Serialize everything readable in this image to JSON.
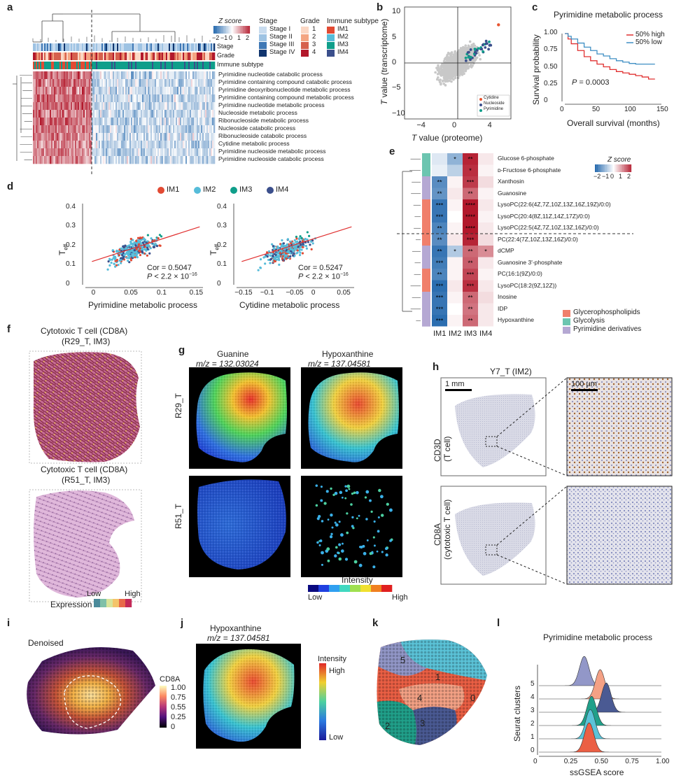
{
  "panels": {
    "a": {
      "label": "a"
    },
    "b": {
      "label": "b"
    },
    "c": {
      "label": "c"
    },
    "d": {
      "label": "d"
    },
    "e": {
      "label": "e"
    },
    "f": {
      "label": "f"
    },
    "g": {
      "label": "g"
    },
    "h": {
      "label": "h"
    },
    "i": {
      "label": "i"
    },
    "j": {
      "label": "j"
    },
    "k": {
      "label": "k"
    },
    "l": {
      "label": "l"
    }
  },
  "heatmap_a": {
    "zscore_title": "Z score",
    "zscore_ticks": [
      "−2",
      "−1",
      "0",
      "1",
      "2"
    ],
    "stage_title": "Stage",
    "stage_items": [
      "Stage I",
      "Stage II",
      "Stage III",
      "Stage IV"
    ],
    "grade_title": "Grade",
    "grade_items": [
      "1",
      "2",
      "3",
      "4"
    ],
    "immune_title": "Immune subtype",
    "immune_items": [
      "IM1",
      "IM2",
      "IM3",
      "IM4"
    ],
    "annot_rows": [
      "Stage",
      "Grade",
      "Immune subtype"
    ],
    "row_labels": [
      "Pyrimidine nucleotide catabolic process",
      "Pyrimidine containing compound catabolic process",
      "Pyrimidine deoxyribonucleotide metabolic process",
      "Pyrimidine containing compound metabolic process",
      "Pyrimidine nucleotide metabolic process",
      "Nucleoside metabolic process",
      "Ribonucleoside metabolic process",
      "Nucleoside catabolic process",
      "Ribonucleoside catabolic process",
      "Cytidine metabolic process",
      "Pyrimidine nucleoside metabolic process",
      "Pyrimidine nucleoside catabolic process"
    ],
    "colors": {
      "stage": [
        "#c9dcef",
        "#9ec3e3",
        "#3f78b5",
        "#10356e"
      ],
      "grade": [
        "#fbd7c4",
        "#f4a582",
        "#d6604d",
        "#b2182b"
      ],
      "immune": [
        "#e24a33",
        "#56bcd9",
        "#0f9e8a",
        "#3b4f8c"
      ]
    }
  },
  "chart_data": [
    {
      "id": "b",
      "type": "scatter",
      "xlabel": "T value (proteome)",
      "ylabel": "T value (transcriptome)",
      "xticks": [
        "−4",
        "0",
        "4"
      ],
      "yticks": [
        "10",
        "5",
        "0",
        "−5",
        "−10"
      ],
      "xlim": [
        -6,
        6
      ],
      "ylim": [
        -11,
        11
      ],
      "legend": [
        "Cytidine",
        "Nucleoside",
        "Pyrimidine"
      ],
      "legend_colors": [
        "#e8542f",
        "#3b4f8c",
        "#0f9e8a"
      ]
    },
    {
      "id": "c",
      "type": "line",
      "title": "Pyrimidine metabolic process",
      "xlabel": "Overall survival (months)",
      "ylabel": "Survival probability",
      "xticks": [
        "0",
        "50",
        "100",
        "150"
      ],
      "yticks": [
        "1.00",
        "0.75",
        "0.50",
        "0.25",
        "0"
      ],
      "xlim": [
        0,
        150
      ],
      "ylim": [
        0,
        1
      ],
      "series": [
        {
          "name": "50% high",
          "color": "#e03030",
          "x": [
            0,
            5,
            10,
            20,
            30,
            40,
            50,
            60,
            70,
            80,
            90,
            100,
            110,
            120,
            130,
            140
          ],
          "y": [
            1.0,
            0.92,
            0.85,
            0.75,
            0.66,
            0.6,
            0.55,
            0.51,
            0.47,
            0.44,
            0.42,
            0.4,
            0.38,
            0.36,
            0.33,
            0.33
          ]
        },
        {
          "name": "50% low",
          "color": "#3f8fc4",
          "x": [
            0,
            5,
            10,
            20,
            30,
            40,
            50,
            60,
            70,
            80,
            90,
            100,
            110,
            120,
            130,
            140
          ],
          "y": [
            1.0,
            0.96,
            0.92,
            0.86,
            0.8,
            0.75,
            0.7,
            0.67,
            0.63,
            0.6,
            0.58,
            0.56,
            0.55,
            0.55,
            0.55,
            0.55
          ]
        }
      ],
      "annotation": "P = 0.0003"
    },
    {
      "id": "d1",
      "type": "scatter",
      "xlabel": "Pyrimidine metabolic process",
      "ylabel": "T",
      "ylabel_sub": "eff",
      "xticks": [
        "0",
        "0.05",
        "0.1",
        "0.15"
      ],
      "yticks": [
        "0.4",
        "0.3",
        "0.2",
        "0.1",
        "0"
      ],
      "xlim": [
        -0.02,
        0.16
      ],
      "ylim": [
        0,
        0.42
      ],
      "stat_cor": "Cor = 0.5047",
      "stat_p": "P < 2.2 × 10",
      "stat_exp": "−16"
    },
    {
      "id": "d2",
      "type": "scatter",
      "xlabel": "Cytidine metabolic process",
      "ylabel": "T",
      "ylabel_sub": "eff",
      "xticks": [
        "−0.15",
        "−0.1",
        "−0.05",
        "0",
        "0.05"
      ],
      "yticks": [
        "0.4",
        "0.3",
        "0.2",
        "0.1",
        "0"
      ],
      "xlim": [
        -0.16,
        0.07
      ],
      "ylim": [
        0,
        0.42
      ],
      "stat_cor": "Cor = 0.5247",
      "stat_p": "P < 2.2 × 10",
      "stat_exp": "−16"
    },
    {
      "id": "e",
      "type": "heatmap",
      "columns": [
        "IM1",
        "IM2",
        "IM3",
        "IM4"
      ],
      "rows": [
        {
          "name": "Glucose 6-phosphate",
          "cat": 1,
          "values": [
            -0.3,
            -1.0,
            1.9,
            0.2
          ],
          "stars": [
            "",
            "*",
            "**",
            ""
          ]
        },
        {
          "name": "ᴅ-Fructose 6-phosphate",
          "cat": 1,
          "values": [
            -0.2,
            -0.6,
            1.8,
            0.1
          ],
          "stars": [
            "",
            "",
            "*",
            ""
          ]
        },
        {
          "name": "Xanthosin",
          "cat": 2,
          "values": [
            -1.5,
            0.1,
            1.7,
            0.3
          ],
          "stars": [
            "**",
            "",
            "***",
            ""
          ]
        },
        {
          "name": "Guanosine",
          "cat": 2,
          "values": [
            -1.4,
            0.2,
            1.3,
            0.1
          ],
          "stars": [
            "**",
            "",
            "**",
            ""
          ]
        },
        {
          "name": "LysoPC(22:6(4Z,7Z,10Z,13Z,16Z,19Z)/0:0)",
          "cat": 0,
          "values": [
            -1.8,
            0.1,
            2.0,
            0.2
          ],
          "stars": [
            "***",
            "",
            "****",
            ""
          ]
        },
        {
          "name": "LysoPC(20:4(8Z,11Z,14Z,17Z)/0:0)",
          "cat": 0,
          "values": [
            -1.8,
            0.0,
            2.0,
            0.1
          ],
          "stars": [
            "***",
            "",
            "****",
            ""
          ]
        },
        {
          "name": "LysoPC(22:5(4Z,7Z,10Z,13Z,16Z)/0:0)",
          "cat": 0,
          "values": [
            -1.6,
            0.1,
            2.0,
            0.2
          ],
          "stars": [
            "**",
            "",
            "****",
            ""
          ]
        },
        {
          "name": "PC(22:4(7Z,10Z,13Z,16Z)/0:0)",
          "cat": 0,
          "values": [
            -1.5,
            0.2,
            1.9,
            0.3
          ],
          "stars": [
            "**",
            "",
            "***",
            ""
          ]
        },
        {
          "name": "dCMP",
          "cat": 2,
          "values": [
            -1.8,
            -0.7,
            1.3,
            1.0
          ],
          "stars": [
            "**",
            "*",
            "**",
            "*"
          ]
        },
        {
          "name": "Guanosine 3'-phosphate",
          "cat": 2,
          "values": [
            -1.7,
            0.1,
            1.4,
            0.2
          ],
          "stars": [
            "***",
            "",
            "**",
            ""
          ]
        },
        {
          "name": "PC(16:1(9Z)/0:0)",
          "cat": 0,
          "values": [
            -1.6,
            0.1,
            1.6,
            0.1
          ],
          "stars": [
            "**",
            "",
            "***",
            ""
          ]
        },
        {
          "name": "LysoPC(18:2(9Z,12Z))",
          "cat": 0,
          "values": [
            -1.9,
            0.2,
            1.8,
            0.2
          ],
          "stars": [
            "***",
            "",
            "***",
            ""
          ]
        },
        {
          "name": "Inosine",
          "cat": 2,
          "values": [
            -1.8,
            0.1,
            1.3,
            0.3
          ],
          "stars": [
            "***",
            "",
            "**",
            ""
          ]
        },
        {
          "name": "IDP",
          "cat": 2,
          "values": [
            -1.8,
            0.0,
            1.2,
            0.2
          ],
          "stars": [
            "***",
            "",
            "**",
            ""
          ]
        },
        {
          "name": "Hypoxanthine",
          "cat": 2,
          "values": [
            -1.9,
            0.1,
            1.3,
            0.2
          ],
          "stars": [
            "***",
            "",
            "**",
            ""
          ]
        }
      ],
      "zscore_title": "Z score",
      "zscore_ticks": [
        "−2",
        "−1",
        "0",
        "1",
        "2"
      ],
      "categories": [
        "Glycerophospholipids",
        "Glycolysis",
        "Pyrimidine derivatives"
      ],
      "category_colors": [
        "#f07f6b",
        "#6cc5b0",
        "#b5a8d3"
      ]
    },
    {
      "id": "l",
      "type": "area",
      "title": "Pyrimidine metabolic process",
      "xlabel": "ssGSEA score",
      "ylabel": "Seurat clusters",
      "xticks": [
        "0",
        "0.25",
        "0.50",
        "0.75",
        "1.00"
      ],
      "xlim": [
        0,
        1
      ],
      "categories": [
        "5",
        "4",
        "3",
        "2",
        "1",
        "0"
      ],
      "series": [
        {
          "name": "5",
          "peak": 0.37,
          "color": "#9297c8"
        },
        {
          "name": "4",
          "peak": 0.5,
          "color": "#f4a185"
        },
        {
          "name": "3",
          "peak": 0.55,
          "color": "#4a5a93"
        },
        {
          "name": "2",
          "peak": 0.43,
          "color": "#20a08a"
        },
        {
          "name": "1",
          "peak": 0.42,
          "color": "#5bc3d8"
        },
        {
          "name": "0",
          "peak": 0.41,
          "color": "#eb5f44"
        }
      ]
    }
  ],
  "legend_d": [
    "IM1",
    "IM2",
    "IM3",
    "IM4"
  ],
  "panel_f": {
    "title1": "Cytotoxic T cell (CD8A)",
    "sub1": "(R29_T, IM3)",
    "title2": "Cytotoxic T cell (CD8A)",
    "sub2": "(R51_T, IM3)",
    "legend_title": "Expression",
    "low": "Low",
    "high": "High"
  },
  "panel_g": {
    "col1": "Guanine",
    "col1_mz": "m/z = 132.03024",
    "col2": "Hypoxanthine",
    "col2_mz": "m/z = 137.04581",
    "row1": "R29_T",
    "row2": "R51_T",
    "intensity": "Intensity",
    "low": "Low",
    "high": "High"
  },
  "panel_h": {
    "title": "Y7_T (IM2)",
    "scale1": "1 mm",
    "scale2": "100 µm",
    "row1": "CD3D",
    "row1_sub": "(T cell)",
    "row2": "CD8A",
    "row2_sub": "(cytotoxic T cell)"
  },
  "panel_i": {
    "title": "Denoised",
    "legend_title": "CD8A",
    "ticks": [
      "1.00",
      "0.75",
      "0.55",
      "0.25",
      "0"
    ]
  },
  "panel_j": {
    "title": "Hypoxanthine",
    "mz": "m/z = 137.04581",
    "intensity": "Intensity",
    "high": "High",
    "low": "Low"
  },
  "panel_k": {
    "clusters": [
      "5",
      "1",
      "4",
      "0",
      "2",
      "3"
    ]
  }
}
